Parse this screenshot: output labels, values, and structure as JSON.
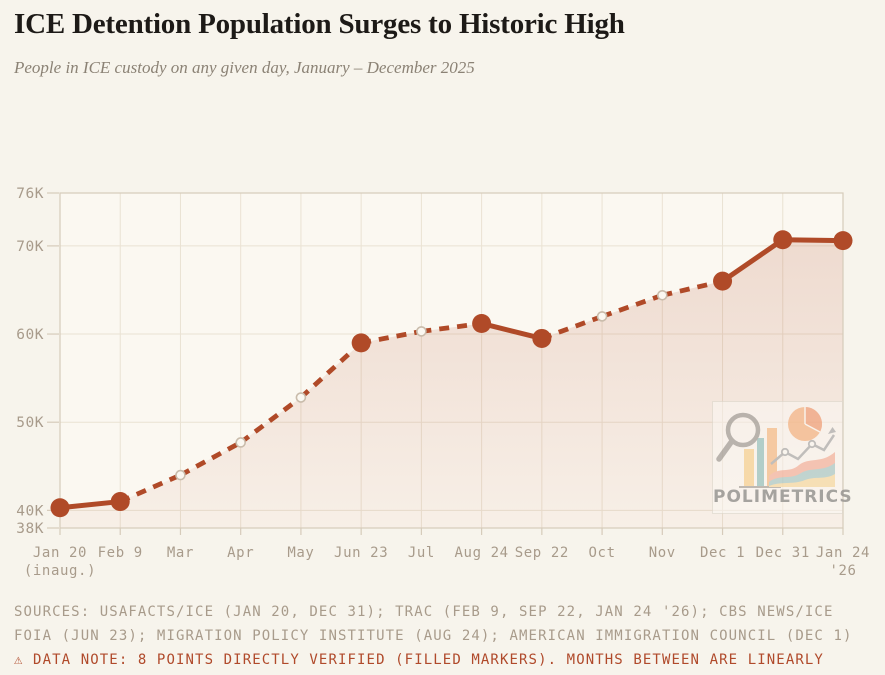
{
  "header": {
    "title": "ICE Detention Population Surges to Historic High",
    "subtitle": "People in ICE custody on any given day, January – December 2025"
  },
  "chart_data": {
    "type": "area",
    "title": "ICE Detention Population Surges to Historic High",
    "subtitle": "People in ICE custody on any given day, January – December 2025",
    "xlabel": "",
    "ylabel": "",
    "legend": "none",
    "grid": true,
    "ylim": [
      38,
      76
    ],
    "unit": "thousands of people",
    "categories": [
      "Jan 20 (inaug.)",
      "Feb 9",
      "Mar",
      "Apr",
      "May",
      "Jun 23",
      "Jul",
      "Aug 24",
      "Sep 22",
      "Oct",
      "Nov",
      "Dec 1",
      "Dec 31",
      "Jan 24 '26"
    ],
    "x_tick_labels": [
      {
        "label": "Jan 20",
        "sub": "(inaug.)"
      },
      {
        "label": "Feb 9"
      },
      {
        "label": "Mar"
      },
      {
        "label": "Apr"
      },
      {
        "label": "May"
      },
      {
        "label": "Jun 23"
      },
      {
        "label": "Jul"
      },
      {
        "label": "Aug 24"
      },
      {
        "label": "Sep 22"
      },
      {
        "label": "Oct"
      },
      {
        "label": "Nov"
      },
      {
        "label": "Dec 1"
      },
      {
        "label": "Dec 31"
      },
      {
        "label": "Jan 24",
        "sub": "'26"
      }
    ],
    "values_thousands": [
      40.3,
      41.0,
      44.0,
      47.7,
      52.8,
      59.0,
      60.3,
      61.2,
      59.5,
      62.0,
      64.4,
      66.0,
      70.7,
      70.6
    ],
    "verified": [
      true,
      true,
      false,
      false,
      false,
      true,
      false,
      true,
      true,
      false,
      false,
      true,
      true,
      true
    ],
    "y_ticks": [
      {
        "label": "76K",
        "value": 76
      },
      {
        "label": "70K",
        "value": 70
      },
      {
        "label": "60K",
        "value": 60
      },
      {
        "label": "50K",
        "value": 50
      },
      {
        "label": "40K",
        "value": 40
      },
      {
        "label": "38K",
        "value": 38
      }
    ],
    "marker_semantics": {
      "filled": "directly verified data point",
      "open": "linearly interpolated month"
    },
    "line_style": {
      "solid": "between adjacent verified points",
      "dashed": "through interpolated months"
    },
    "colors": {
      "line": "#b04a28",
      "area_top": "rgba(176,74,42,0.17)",
      "area_bottom": "rgba(176,74,42,0.05)",
      "grid": "#eae2d3",
      "frame": "#d6cbba",
      "axis_text": "#a89b8b",
      "open_marker_stroke": "#c9bcab",
      "plot_bg": "#fbf8f1",
      "page_bg": "#f7f4ec"
    }
  },
  "footer": {
    "sources_lines": [
      "SOURCES: USAFACTS/ICE (JAN 20, DEC 31); TRAC (FEB 9, SEP 22, JAN 24 '26); CBS NEWS/ICE",
      "FOIA (JUN 23); MIGRATION POLICY INSTITUTE (AUG 24); AMERICAN IMMIGRATION COUNCIL (DEC 1)"
    ],
    "data_note": "⚠ DATA NOTE: 8 POINTS DIRECTLY VERIFIED (FILLED MARKERS). MONTHS BETWEEN ARE LINEARLY"
  },
  "watermark": {
    "text": "POLIMETRICS"
  }
}
